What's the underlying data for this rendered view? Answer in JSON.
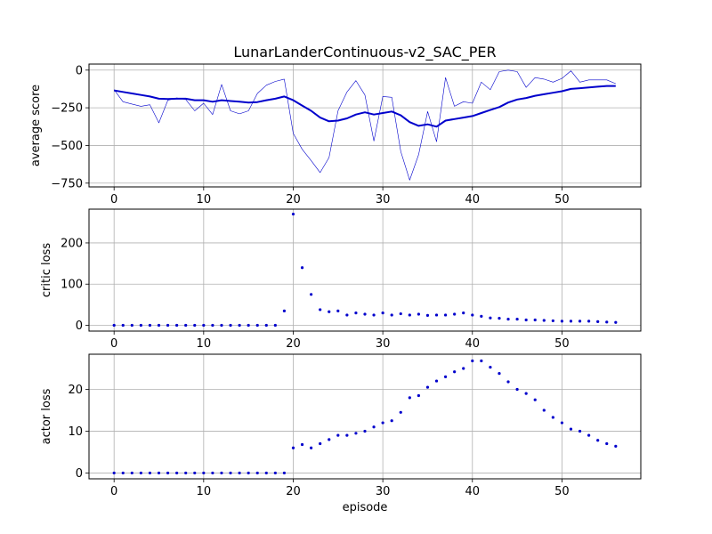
{
  "chart_data": {
    "type": "line",
    "title": "LunarLanderContinuous-v2_SAC_PER",
    "xlabel": "episode",
    "color": "#0000cc",
    "grid": true,
    "x": [
      0,
      1,
      2,
      3,
      4,
      5,
      6,
      7,
      8,
      9,
      10,
      11,
      12,
      13,
      14,
      15,
      16,
      17,
      18,
      19,
      20,
      21,
      22,
      23,
      24,
      25,
      26,
      27,
      28,
      29,
      30,
      31,
      32,
      33,
      34,
      35,
      36,
      37,
      38,
      39,
      40,
      41,
      42,
      43,
      44,
      45,
      46,
      47,
      48,
      49,
      50,
      51,
      52,
      53,
      54,
      55,
      56
    ],
    "panels": [
      {
        "ylabel": "average score",
        "xlim": [
          -2.8,
          58.8
        ],
        "ylim": [
          -775,
          40
        ],
        "yticks": [
          0,
          -250,
          -500,
          -750
        ],
        "xticks": [
          0,
          10,
          20,
          30,
          40,
          50
        ],
        "series": [
          {
            "style": "thin-line",
            "values": [
              -130,
              -210,
              -225,
              -240,
              -230,
              -350,
              -200,
              -185,
              -195,
              -270,
              -220,
              -295,
              -95,
              -270,
              -290,
              -270,
              -155,
              -100,
              -75,
              -60,
              -420,
              -525,
              -600,
              -680,
              -580,
              -270,
              -145,
              -70,
              -165,
              -470,
              -175,
              -180,
              -540,
              -730,
              -560,
              -275,
              -475,
              -50,
              -240,
              -210,
              -220,
              -80,
              -130,
              -10,
              0,
              -10,
              -115,
              -50,
              -60,
              -80,
              -55,
              -5,
              -80,
              -65,
              -65,
              -65,
              -90
            ]
          },
          {
            "style": "thick-line",
            "values": [
              -135,
              -145,
              -155,
              -165,
              -175,
              -190,
              -192,
              -190,
              -190,
              -200,
              -200,
              -210,
              -200,
              -205,
              -210,
              -215,
              -212,
              -200,
              -190,
              -175,
              -200,
              -235,
              -270,
              -315,
              -340,
              -335,
              -320,
              -295,
              -280,
              -295,
              -285,
              -275,
              -300,
              -345,
              -370,
              -360,
              -375,
              -335,
              -325,
              -315,
              -305,
              -285,
              -265,
              -245,
              -215,
              -195,
              -185,
              -170,
              -160,
              -150,
              -140,
              -125,
              -120,
              -115,
              -110,
              -105,
              -105
            ]
          }
        ]
      },
      {
        "ylabel": "critic loss",
        "xlim": [
          -2.8,
          58.8
        ],
        "ylim": [
          -14,
          282
        ],
        "yticks": [
          0,
          100,
          200
        ],
        "xticks": [
          0,
          10,
          20,
          30,
          40,
          50
        ],
        "series": [
          {
            "style": "points",
            "values": [
              0,
              0,
              0,
              0,
              0,
              0,
              0,
              0,
              0,
              0,
              0,
              0,
              0,
              0,
              0,
              0,
              0,
              0,
              0,
              35,
              270,
              140,
              75,
              38,
              33,
              35,
              25,
              30,
              27,
              25,
              30,
              25,
              28,
              25,
              27,
              24,
              25,
              25,
              27,
              30,
              25,
              22,
              18,
              17,
              15,
              15,
              13,
              13,
              12,
              11,
              10,
              10,
              10,
              10,
              9,
              8,
              7
            ]
          }
        ]
      },
      {
        "ylabel": "actor loss",
        "xlim": [
          -2.8,
          58.8
        ],
        "ylim": [
          -1.4,
          28.4
        ],
        "yticks": [
          0,
          10,
          20
        ],
        "xticks": [
          0,
          10,
          20,
          30,
          40,
          50
        ],
        "series": [
          {
            "style": "points",
            "values": [
              0,
              0,
              0,
              0,
              0,
              0,
              0,
              0,
              0,
              0,
              0,
              0,
              0,
              0,
              0,
              0,
              0,
              0,
              0,
              0,
              6,
              6.8,
              6,
              7,
              8,
              9,
              9,
              9.5,
              10,
              11,
              12,
              12.5,
              14.5,
              18,
              18.5,
              20.5,
              22,
              23,
              24.2,
              25,
              26.8,
              26.8,
              25.3,
              23.8,
              21.8,
              20,
              19,
              17.5,
              15,
              13.3,
              12,
              10.5,
              10,
              9,
              7.8,
              7,
              6.4
            ]
          }
        ]
      }
    ]
  }
}
